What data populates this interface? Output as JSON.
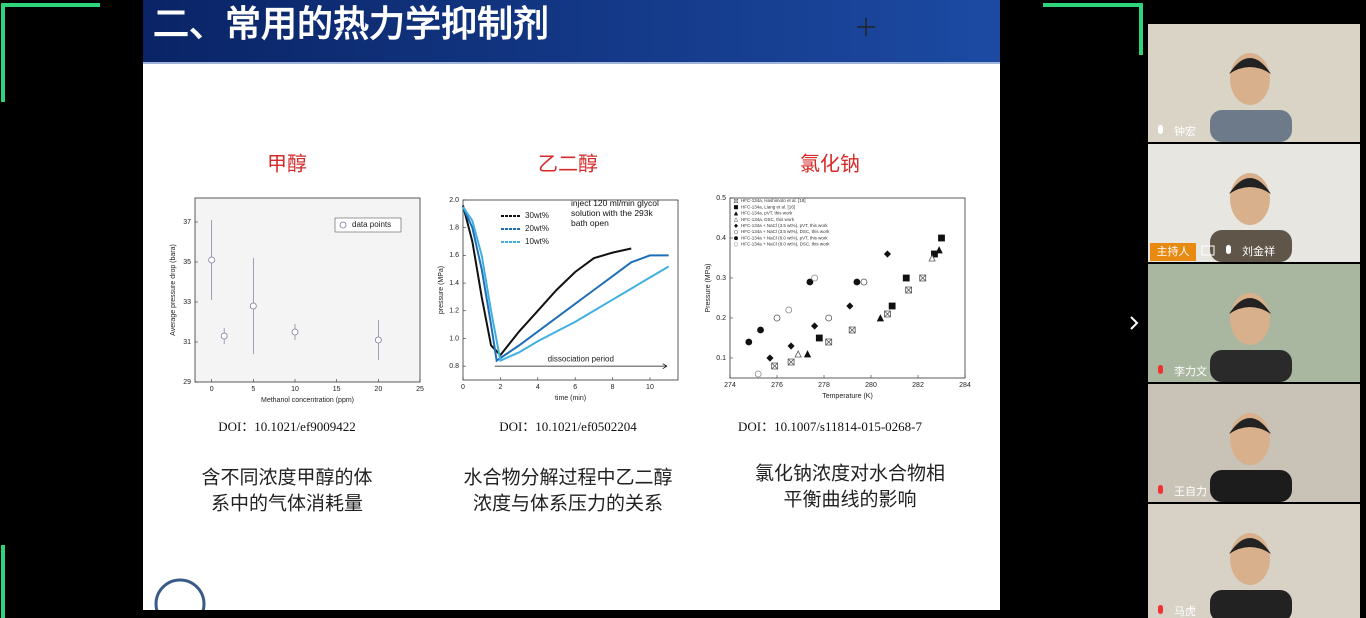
{
  "slide": {
    "title": "二、常用的热力学抑制剂",
    "columns": [
      {
        "heading": "甲醇",
        "doi": "DOI：10.1021/ef9009422",
        "caption": [
          "含不同浓度甲醇的体",
          "系中的气体消耗量"
        ],
        "chart": {
          "type": "scatter",
          "xlabel": "Methanol concentration (ppm)",
          "ylabel": "Average pressure drop (bara)",
          "xlim": [
            -2,
            25
          ],
          "ylim": [
            29,
            38.2
          ],
          "xticks": [
            0,
            5,
            10,
            15,
            20,
            25
          ],
          "yticks": [
            29,
            31,
            33,
            35,
            37
          ],
          "series": [
            {
              "name": "data points",
              "color": "#7a7a9a",
              "marker": "open-circle",
              "x": [
                0,
                1.5,
                5,
                10,
                20
              ],
              "values": [
                35.1,
                31.3,
                32.8,
                31.5,
                31.1
              ],
              "errors": [
                2,
                0.4,
                2.4,
                0.4,
                1
              ]
            }
          ]
        }
      },
      {
        "heading": "乙二醇",
        "doi": "DOI：10.1021/ef0502204",
        "caption": [
          "水合物分解过程中乙二醇",
          "浓度与体系压力的关系"
        ],
        "chart": {
          "type": "line",
          "xlabel": "time (min)",
          "ylabel": "pressure (MPa)",
          "xlim": [
            0,
            11.5
          ],
          "ylim": [
            0.7,
            2.0
          ],
          "xticks": [
            0,
            2,
            4,
            6,
            8,
            10
          ],
          "yticks": [
            0.8,
            {
              "value": 1,
              "label": "1.0"
            },
            1.2,
            1.4,
            1.6,
            1.8,
            {
              "value": 2,
              "label": "2.0"
            }
          ],
          "annotations": [
            "inject 120 ml/min glycol solution with the 293k bath open",
            "dissociation period"
          ],
          "series": [
            {
              "name": "30wt%",
              "color": "#111111",
              "x": [
                0,
                0.5,
                1,
                1.5,
                2,
                3,
                4,
                5,
                6,
                7,
                8,
                9
              ],
              "values": [
                1.96,
                1.7,
                1.3,
                0.95,
                0.88,
                1.05,
                1.2,
                1.35,
                1.48,
                1.58,
                1.62,
                1.65
              ]
            },
            {
              "name": "20wt%",
              "color": "#1f6fb8",
              "x": [
                0,
                0.5,
                1,
                1.5,
                1.8,
                3,
                4,
                5,
                6,
                7,
                8,
                9,
                10,
                11
              ],
              "values": [
                1.95,
                1.8,
                1.5,
                1.1,
                0.84,
                0.95,
                1.05,
                1.15,
                1.25,
                1.35,
                1.45,
                1.55,
                1.6,
                1.6
              ]
            },
            {
              "name": "10wt%",
              "color": "#3fb0e0",
              "x": [
                0,
                0.5,
                1,
                1.5,
                2,
                3,
                4,
                5,
                6,
                7,
                8,
                9,
                10,
                11
              ],
              "values": [
                1.95,
                1.85,
                1.6,
                1.2,
                0.84,
                0.9,
                0.98,
                1.05,
                1.12,
                1.2,
                1.28,
                1.36,
                1.44,
                1.52
              ]
            }
          ]
        }
      },
      {
        "heading": "氯化钠",
        "doi": "DOI：10.1007/s11814-015-0268-7",
        "caption": [
          "氯化钠浓度对水合物相",
          "平衡曲线的影响"
        ],
        "chart": {
          "type": "scatter",
          "xlabel": "Temperature (K)",
          "ylabel": "Pressure (MPa)",
          "xlim": [
            274,
            284
          ],
          "ylim": [
            0.05,
            0.5
          ],
          "xticks": [
            274,
            276,
            278,
            280,
            282,
            284
          ],
          "yticks": [
            0.1,
            0.2,
            0.3,
            0.4,
            0.5
          ],
          "series": [
            {
              "name": "HFC-134a, Hashimoto et al. [18]",
              "color": "#555555",
              "marker": "box-cross",
              "x": [
                275.9,
                276.6,
                278.2,
                279.2,
                280.7,
                281.6,
                282.2
              ],
              "values": [
                0.08,
                0.09,
                0.14,
                0.17,
                0.21,
                0.27,
                0.3
              ]
            },
            {
              "name": "HFC-134a, Liang et al. [16]",
              "color": "#111111",
              "marker": "square",
              "x": [
                277.8,
                280.9,
                281.5,
                282.7,
                283.0
              ],
              "values": [
                0.15,
                0.23,
                0.3,
                0.36,
                0.4
              ]
            },
            {
              "name": "HFC-134a, pVT, this work",
              "color": "#111111",
              "marker": "triangle",
              "x": [
                277.3,
                280.4,
                282.9
              ],
              "values": [
                0.11,
                0.2,
                0.37
              ]
            },
            {
              "name": "HFC-134a, DSC, this work",
              "color": "#555555",
              "marker": "open-triangle",
              "x": [
                276.9,
                282.6
              ],
              "values": [
                0.11,
                0.35
              ]
            },
            {
              "name": "HFC-134a + NaCl (3.5 wt%), pVT, this work",
              "color": "#111111",
              "marker": "diamond",
              "x": [
                275.7,
                276.6,
                277.6,
                279.1,
                280.7
              ],
              "values": [
                0.1,
                0.13,
                0.18,
                0.23,
                0.36
              ]
            },
            {
              "name": "HFC-134a + NaCl (3.5 wt%), DSC, this work",
              "color": "#555555",
              "marker": "open-circle",
              "x": [
                276.0,
                278.2,
                279.7
              ],
              "values": [
                0.2,
                0.2,
                0.29
              ]
            },
            {
              "name": "HFC-134a + NaCl (8.0 wt%), pVT, this work",
              "color": "#111111",
              "marker": "circle",
              "x": [
                274.8,
                275.3,
                277.4,
                279.4
              ],
              "values": [
                0.14,
                0.17,
                0.29,
                0.29
              ]
            },
            {
              "name": "HFC-134a + NaCl (8.0 wt%), DSC, this work",
              "color": "#888888",
              "marker": "open-circle",
              "x": [
                275.2,
                276.5,
                277.6
              ],
              "values": [
                0.06,
                0.22,
                0.3
              ]
            }
          ]
        }
      }
    ]
  },
  "participants": [
    {
      "name": "钟宏"
    },
    {
      "name": "刘金祥",
      "role": "主持人"
    },
    {
      "name": "李力文"
    },
    {
      "name": "王自力"
    },
    {
      "name": "马虎"
    }
  ]
}
